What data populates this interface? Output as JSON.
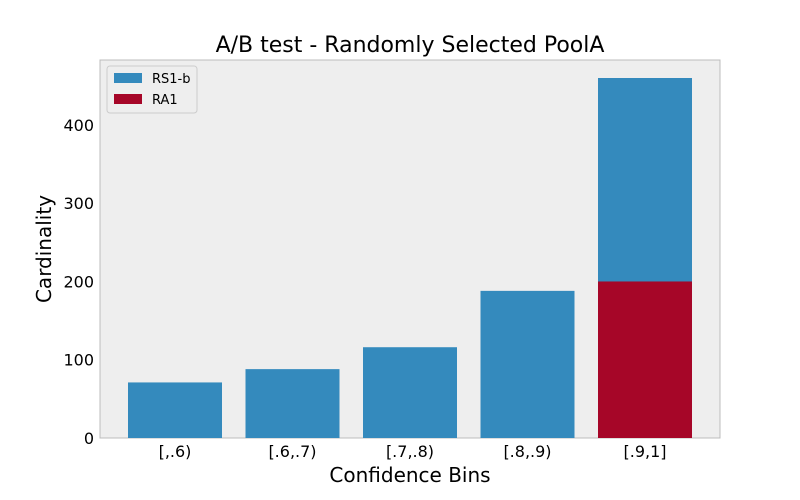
{
  "chart_data": {
    "type": "bar",
    "stacked": "overlay",
    "title": "A/B test - Randomly Selected PoolA",
    "xlabel": "Confidence Bins",
    "ylabel": "Cardinality",
    "categories": [
      "[,.6)",
      "[.6,.7)",
      "[.7,.8)",
      "[.8,.9)",
      "[.9,1]"
    ],
    "ylim": [
      0,
      483
    ],
    "yticks": [
      0,
      100,
      200,
      300,
      400
    ],
    "grid": false,
    "legend_position": "top-left",
    "series": [
      {
        "name": "RS1-b",
        "color": "#348abd",
        "values": [
          71,
          88,
          116,
          188,
          460
        ]
      },
      {
        "name": "RA1",
        "color": "#a60628",
        "values": [
          0,
          0,
          0,
          0,
          200
        ]
      }
    ]
  }
}
